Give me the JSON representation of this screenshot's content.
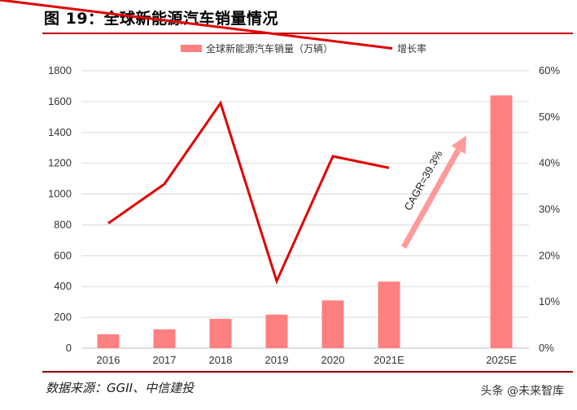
{
  "header": {
    "title": "图 19：全球新能源汽车销量情况"
  },
  "footer": {
    "source": "数据来源：GGII、中信建投",
    "watermark": "头条 @未来智库"
  },
  "colors": {
    "bar": "#ff8080",
    "line": "#e00000",
    "arrow": "#ff9a9a",
    "grid": "#d9d9d9",
    "rule": "#c00000"
  },
  "chart_data": {
    "type": "bar",
    "categories": [
      "2016",
      "2017",
      "2018",
      "2019",
      "2020",
      "2021E",
      "2025E"
    ],
    "series": [
      {
        "name": "全球新能源汽车销量（万辆）",
        "type": "bar",
        "axis": "left",
        "values": [
          90,
          122,
          190,
          218,
          310,
          432,
          1640
        ]
      },
      {
        "name": "增长率",
        "type": "line",
        "axis": "right",
        "values": [
          0.27,
          0.355,
          0.53,
          0.145,
          0.415,
          0.39,
          null
        ]
      }
    ],
    "left_axis": {
      "ticks": [
        "0",
        "200",
        "400",
        "600",
        "800",
        "1000",
        "1200",
        "1400",
        "1600",
        "1800"
      ],
      "ylim": [
        0,
        1800
      ]
    },
    "right_axis": {
      "ticks": [
        "0%",
        "10%",
        "20%",
        "30%",
        "40%",
        "50%",
        "60%"
      ],
      "ylim": [
        0,
        0.6
      ]
    },
    "annotation": "CAGR=39.3%",
    "legend_position": "top",
    "grid": true
  }
}
